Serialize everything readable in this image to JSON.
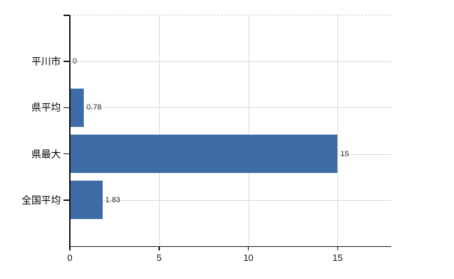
{
  "chart_data": {
    "type": "bar",
    "orientation": "horizontal",
    "categories": [
      "平川市",
      "県平均",
      "県最大",
      "全国平均"
    ],
    "values": [
      0,
      0.78,
      15,
      1.83
    ],
    "value_labels": [
      "0",
      "0.78",
      "15",
      "1.83"
    ],
    "xlim": [
      0,
      18
    ],
    "xticks": [
      0,
      5,
      10,
      15
    ],
    "xtick_labels": [
      "0",
      "5",
      "10",
      "15"
    ],
    "grid": true,
    "legend": false,
    "colors": {
      "bar": "#3e6ca7",
      "gridline": "#d9d9d9",
      "plot_top_border": "#cccccc",
      "axis": "#111111",
      "category_text": "#000000",
      "tick_text": "#111111",
      "value_text": "#2b2b2b"
    }
  }
}
